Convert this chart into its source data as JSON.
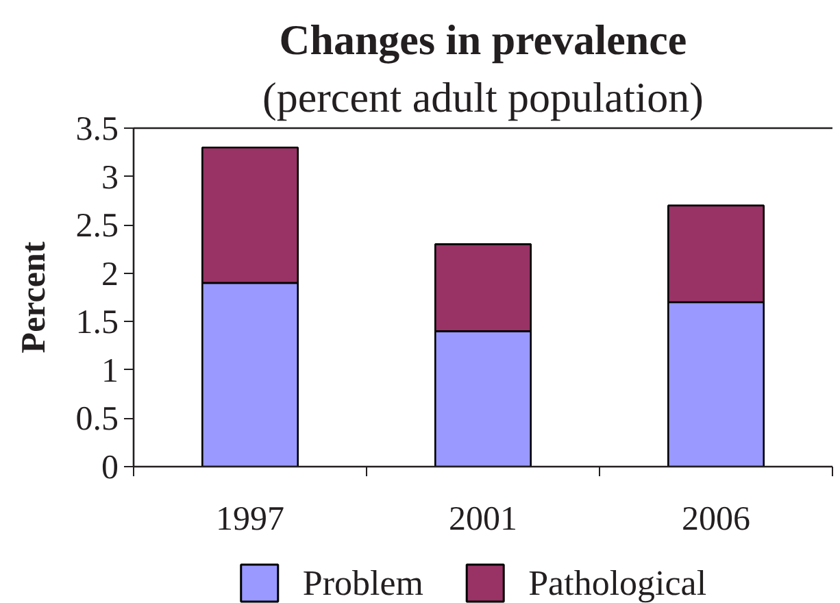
{
  "chart_data": {
    "type": "bar",
    "title": "Changes in prevalence",
    "subtitle": "(percent adult population)",
    "ylabel": "Percent",
    "categories": [
      "1997",
      "2001",
      "2006"
    ],
    "stacked": true,
    "series": [
      {
        "name": "Problem",
        "color": "#9999ff",
        "values": [
          1.9,
          1.4,
          1.7
        ]
      },
      {
        "name": "Pathological",
        "color": "#993366",
        "values": [
          1.4,
          0.9,
          1.0
        ]
      }
    ],
    "ylim": [
      0,
      3.5
    ],
    "yticks": [
      0,
      0.5,
      1,
      1.5,
      2,
      2.5,
      3,
      3.5
    ],
    "grid": false,
    "legend": "bottom"
  }
}
